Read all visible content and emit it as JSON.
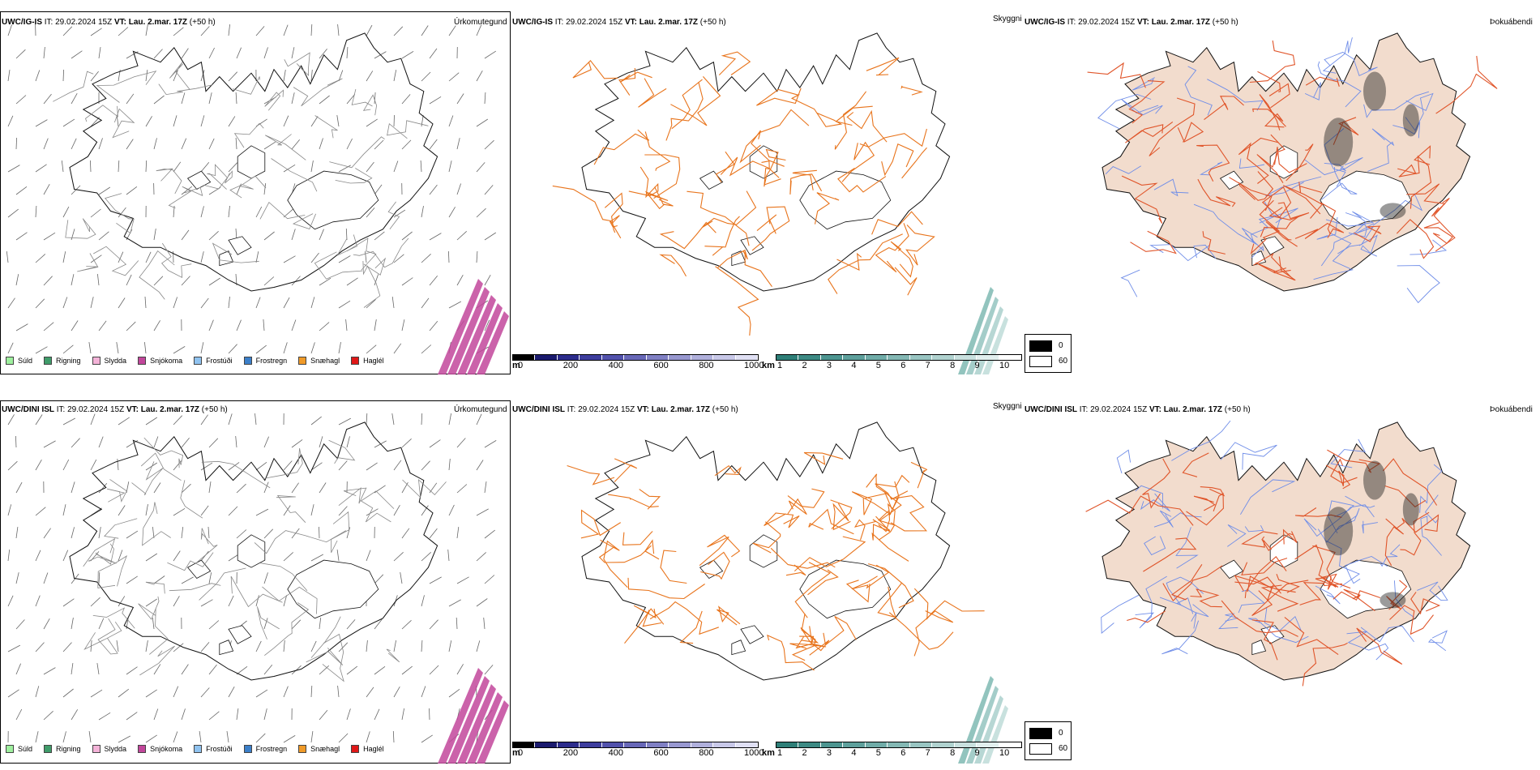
{
  "colors": {
    "coast": "#111111",
    "roads": "#e8741c",
    "roads_red": "#e0552a",
    "rivers": "#6f8de8",
    "land_fill": "#f2dccd",
    "wind": "#666666",
    "precip": "#c2469b",
    "vis": "#4a9c93"
  },
  "rows": [
    {
      "model": "UWC/IG-IS",
      "it_label": "IT:",
      "it_value": "29.02.2024 15Z",
      "vt_label": "VT:",
      "vt_value": "Lau. 2.mar. 17Z",
      "lead": "(+50 h)"
    },
    {
      "model": "UWC/DINI ISL",
      "it_label": "IT:",
      "it_value": "29.02.2024 15Z",
      "vt_label": "VT:",
      "vt_value": "Lau. 2.mar. 17Z",
      "lead": "(+50 h)"
    }
  ],
  "fields": {
    "precip_type": "Úrkomutegund",
    "visibility": "Skyggni",
    "fog": "Þokuábendi"
  },
  "precip_legend": [
    {
      "label": "Súld",
      "color": "#9ef09e"
    },
    {
      "label": "Rigning",
      "color": "#3f9c6a"
    },
    {
      "label": "Slydda",
      "color": "#f4b3d8"
    },
    {
      "label": "Snjókoma",
      "color": "#c2469b"
    },
    {
      "label": "Frostúði",
      "color": "#90c3f0"
    },
    {
      "label": "Frostregn",
      "color": "#3b7fc9"
    },
    {
      "label": "Snæhagl",
      "color": "#f09a28"
    },
    {
      "label": "Haglél",
      "color": "#e01818"
    }
  ],
  "elevation_bar": {
    "unit": "m",
    "ticks": [
      "0",
      "200",
      "400",
      "600",
      "800",
      "1000"
    ],
    "colors": [
      "#000000",
      "#1a1a6e",
      "#2c2c8c",
      "#3e3e9e",
      "#5252ac",
      "#6868b8",
      "#8080c4",
      "#9898d0",
      "#b0b0dc",
      "#c8c8e8",
      "#e0e0f4"
    ]
  },
  "visibility_bar": {
    "unit": "km",
    "ticks": [
      "1",
      "2",
      "3",
      "4",
      "5",
      "6",
      "7",
      "8",
      "9",
      "10"
    ],
    "colors": [
      "#2e7f78",
      "#3d8a84",
      "#4d9590",
      "#5ea09c",
      "#70aca8",
      "#84b8b4",
      "#99c5c2",
      "#b0d2cf",
      "#c8e0de",
      "#e2efee",
      "#ffffff"
    ]
  },
  "fog_legend": {
    "dark": "0",
    "light": "60"
  }
}
